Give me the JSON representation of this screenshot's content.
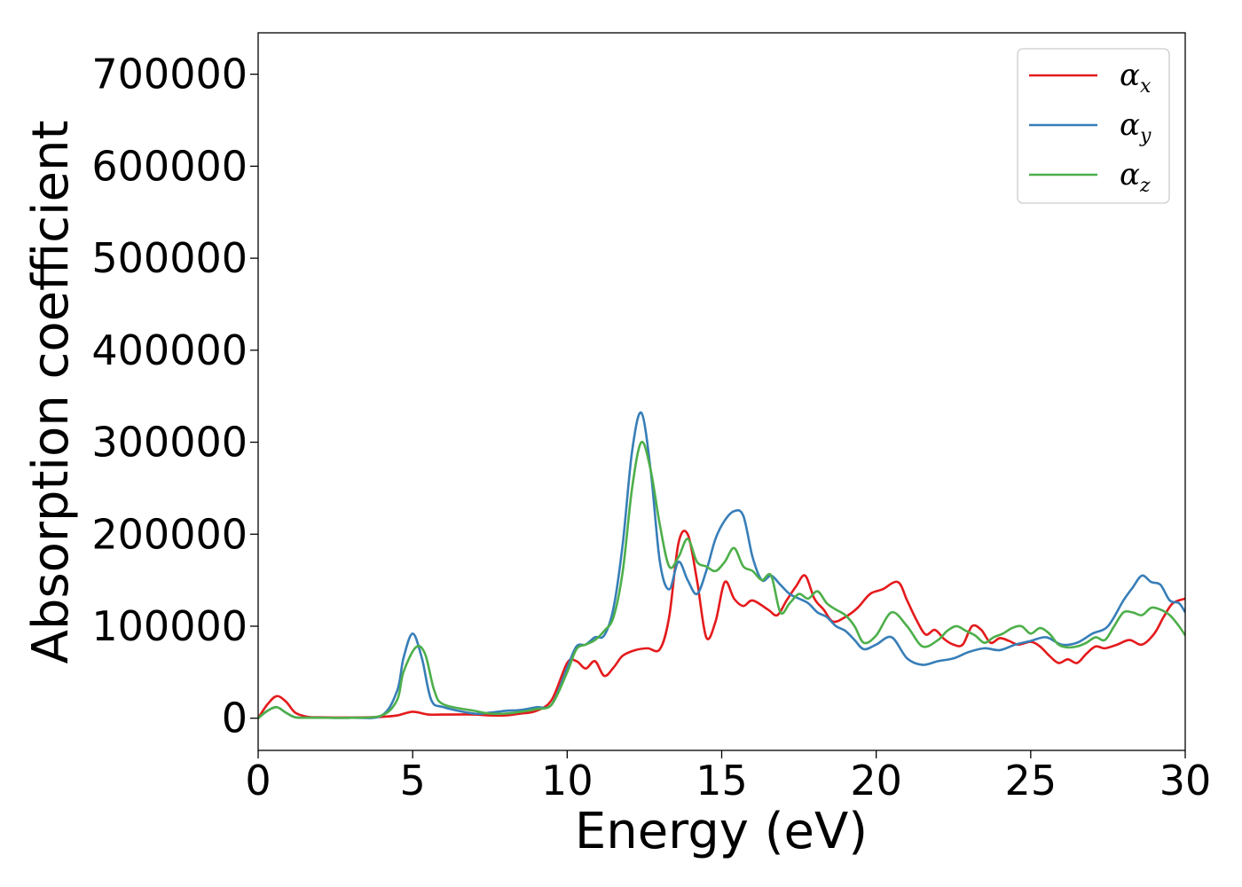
{
  "chart_data": {
    "type": "line",
    "title": "",
    "xlabel": "Energy (eV)",
    "ylabel": "Absorption coefficient",
    "xlim": [
      0,
      30
    ],
    "ylim": [
      -35000,
      745000
    ],
    "xticks": [
      0,
      5,
      10,
      15,
      20,
      25,
      30
    ],
    "yticks": [
      0,
      100000,
      200000,
      300000,
      400000,
      500000,
      600000,
      700000
    ],
    "grid": false,
    "legend_position": "top-right",
    "series": [
      {
        "name": "α",
        "subscript": "x",
        "color": "#e41a1c",
        "x": [
          0,
          0.3,
          0.6,
          0.9,
          1.2,
          1.6,
          2,
          3,
          4,
          4.5,
          5,
          5.5,
          6,
          7,
          7.5,
          8,
          8.5,
          9,
          9.5,
          10,
          10.3,
          10.6,
          10.9,
          11.2,
          11.5,
          11.8,
          12.2,
          12.6,
          13,
          13.3,
          13.6,
          13.9,
          14.2,
          14.5,
          14.8,
          15.1,
          15.4,
          15.7,
          16,
          16.5,
          16.8,
          17.1,
          17.4,
          17.7,
          18,
          18.3,
          18.6,
          19,
          19.4,
          19.8,
          20.2,
          20.7,
          21,
          21.3,
          21.6,
          21.9,
          22.2,
          22.5,
          22.8,
          23.1,
          23.4,
          23.7,
          24,
          24.3,
          24.6,
          25,
          25.3,
          25.6,
          25.9,
          26.2,
          26.5,
          26.8,
          27.1,
          27.4,
          27.8,
          28.2,
          28.6,
          29,
          29.3,
          29.6,
          30
        ],
        "y": [
          0,
          15000,
          24000,
          18000,
          6000,
          1500,
          1000,
          800,
          1500,
          3000,
          7000,
          4000,
          4000,
          4000,
          3000,
          3000,
          5000,
          8000,
          20000,
          60000,
          62000,
          54000,
          62000,
          46000,
          55000,
          68000,
          74000,
          76000,
          75000,
          110000,
          190000,
          200000,
          150000,
          88000,
          105000,
          148000,
          130000,
          122000,
          128000,
          118000,
          112000,
          128000,
          143000,
          155000,
          130000,
          118000,
          105000,
          110000,
          120000,
          135000,
          140000,
          148000,
          128000,
          107000,
          91000,
          96000,
          86000,
          80000,
          80000,
          100000,
          96000,
          82000,
          87000,
          84000,
          80000,
          83000,
          78000,
          68000,
          60000,
          64000,
          60000,
          70000,
          78000,
          76000,
          80000,
          85000,
          80000,
          92000,
          110000,
          125000,
          130000
        ]
      },
      {
        "name": "α",
        "subscript": "y",
        "color": "#377eb8",
        "x": [
          0,
          0.3,
          0.6,
          0.9,
          1.2,
          1.6,
          2,
          3,
          4,
          4.5,
          4.7,
          5,
          5.3,
          5.6,
          6,
          7,
          7.5,
          8,
          8.5,
          9,
          9.5,
          10,
          10.3,
          10.6,
          10.9,
          11.2,
          11.5,
          11.8,
          12.1,
          12.4,
          12.7,
          13,
          13.3,
          13.6,
          13.9,
          14.2,
          14.5,
          14.8,
          15.1,
          15.4,
          15.7,
          16,
          16.3,
          16.6,
          16.9,
          17.2,
          17.5,
          17.8,
          18.1,
          18.4,
          18.7,
          19,
          19.3,
          19.6,
          20,
          20.5,
          21,
          21.5,
          22,
          22.5,
          23,
          23.5,
          24,
          24.5,
          25,
          25.5,
          26,
          26.5,
          27,
          27.5,
          28,
          28.3,
          28.6,
          28.9,
          29.2,
          29.5,
          29.8,
          30
        ],
        "y": [
          0,
          8000,
          12000,
          6000,
          1000,
          500,
          500,
          500,
          3000,
          30000,
          65000,
          92000,
          65000,
          20000,
          12000,
          5000,
          6000,
          8000,
          9000,
          12000,
          15000,
          55000,
          78000,
          80000,
          88000,
          90000,
          120000,
          190000,
          290000,
          332000,
          270000,
          170000,
          140000,
          170000,
          150000,
          135000,
          160000,
          195000,
          215000,
          225000,
          220000,
          175000,
          150000,
          155000,
          145000,
          135000,
          130000,
          125000,
          115000,
          110000,
          100000,
          95000,
          85000,
          75000,
          80000,
          88000,
          65000,
          58000,
          62000,
          65000,
          72000,
          76000,
          74000,
          80000,
          84000,
          88000,
          80000,
          82000,
          92000,
          100000,
          128000,
          142000,
          155000,
          148000,
          145000,
          128000,
          125000,
          115000
        ]
      },
      {
        "name": "α",
        "subscript": "z",
        "color": "#4daf4a",
        "x": [
          0,
          0.3,
          0.6,
          0.9,
          1.2,
          1.6,
          2,
          3,
          4,
          4.5,
          4.7,
          5.1,
          5.4,
          5.7,
          6,
          7,
          7.5,
          8,
          8.5,
          9,
          9.5,
          10,
          10.3,
          10.6,
          10.9,
          11.2,
          11.5,
          11.8,
          12.1,
          12.4,
          12.7,
          13,
          13.3,
          13.6,
          13.9,
          14.2,
          14.5,
          14.8,
          15.1,
          15.4,
          15.7,
          16,
          16.3,
          16.6,
          16.9,
          17.2,
          17.5,
          17.8,
          18.1,
          18.4,
          18.7,
          19,
          19.3,
          19.6,
          20,
          20.5,
          21,
          21.5,
          22,
          22.3,
          22.6,
          22.9,
          23.2,
          23.5,
          23.8,
          24.1,
          24.4,
          24.7,
          25,
          25.3,
          25.6,
          25.9,
          26.2,
          26.5,
          26.8,
          27.1,
          27.4,
          27.7,
          28,
          28.3,
          28.6,
          28.9,
          29.2,
          29.5,
          29.8,
          30
        ],
        "y": [
          0,
          8000,
          12000,
          6000,
          1000,
          500,
          500,
          500,
          3000,
          20000,
          50000,
          77000,
          70000,
          30000,
          15000,
          8000,
          5000,
          5000,
          7000,
          10000,
          15000,
          50000,
          75000,
          80000,
          85000,
          95000,
          110000,
          160000,
          250000,
          300000,
          270000,
          210000,
          165000,
          175000,
          195000,
          170000,
          165000,
          160000,
          170000,
          185000,
          165000,
          160000,
          150000,
          155000,
          115000,
          125000,
          135000,
          130000,
          138000,
          125000,
          118000,
          112000,
          100000,
          82000,
          90000,
          115000,
          100000,
          78000,
          85000,
          95000,
          100000,
          95000,
          90000,
          82000,
          88000,
          92000,
          98000,
          100000,
          92000,
          98000,
          92000,
          80000,
          77000,
          78000,
          82000,
          88000,
          85000,
          100000,
          115000,
          115000,
          112000,
          120000,
          118000,
          112000,
          100000,
          90000
        ]
      }
    ]
  }
}
